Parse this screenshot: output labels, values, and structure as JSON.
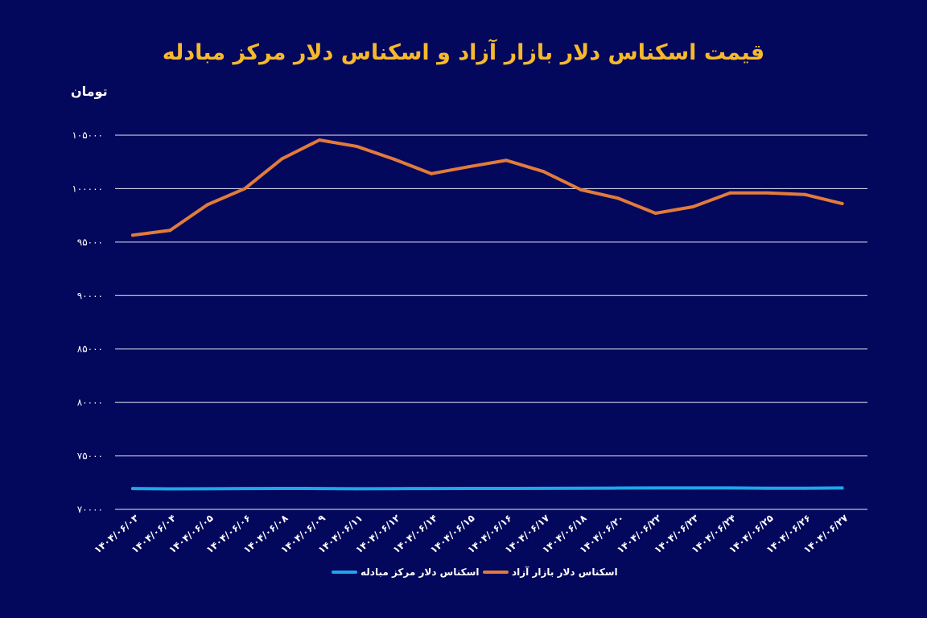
{
  "chart_data": {
    "type": "line",
    "title": "قیمت اسکناس دلار بازار آزاد و اسکناس دلار مرکز مبادله",
    "ylabel": "تومان",
    "xlabel": "",
    "ylim": [
      70000,
      105000
    ],
    "yticks": [
      70000,
      75000,
      80000,
      85000,
      90000,
      95000,
      100000,
      105000
    ],
    "ytick_labels": [
      "۷۰۰۰۰",
      "۷۵۰۰۰",
      "۸۰۰۰۰",
      "۸۵۰۰۰",
      "۹۰۰۰۰",
      "۹۵۰۰۰",
      "۱۰۰۰۰۰",
      "۱۰۵۰۰۰"
    ],
    "grid": true,
    "legend_position": "bottom",
    "categories": [
      "۱۴۰۴/۰۶/۰۳",
      "۱۴۰۴/۰۶/۰۴",
      "۱۴۰۴/۰۶/۰۵",
      "۱۴۰۴/۰۶/۰۶",
      "۱۴۰۴/۰۶/۰۸",
      "۱۴۰۴/۰۶/۰۹",
      "۱۴۰۴/۰۶/۱۱",
      "۱۴۰۴/۰۶/۱۲",
      "۱۴۰۴/۰۶/۱۴",
      "۱۴۰۴/۰۶/۱۵",
      "۱۴۰۴/۰۶/۱۶",
      "۱۴۰۴/۰۶/۱۷",
      "۱۴۰۴/۰۶/۱۸",
      "۱۴۰۴/۰۶/۲۰",
      "۱۴۰۴/۰۶/۲۲",
      "۱۴۰۴/۰۶/۲۳",
      "۱۴۰۴/۰۶/۲۴",
      "۱۴۰۴/۰۶/۲۵",
      "۱۴۰۴/۰۶/۲۶",
      "۱۴۰۴/۰۶/۲۷"
    ],
    "series": [
      {
        "name": "اسکناس دلار بازار آزاد",
        "color": "#e27b3b",
        "values": [
          95650,
          96100,
          98500,
          100000,
          102800,
          104550,
          103950,
          102750,
          101400,
          102050,
          102650,
          101600,
          99900,
          99100,
          97700,
          98300,
          99600,
          99600,
          99450,
          98600
        ]
      },
      {
        "name": "اسکناس دلار مرکز مبادله",
        "color": "#1ea6ea",
        "values": [
          71950,
          71920,
          71930,
          71950,
          71960,
          71950,
          71930,
          71940,
          71950,
          71960,
          71960,
          71970,
          71980,
          71990,
          72000,
          72000,
          72000,
          71980,
          71980,
          72000
        ]
      }
    ]
  }
}
